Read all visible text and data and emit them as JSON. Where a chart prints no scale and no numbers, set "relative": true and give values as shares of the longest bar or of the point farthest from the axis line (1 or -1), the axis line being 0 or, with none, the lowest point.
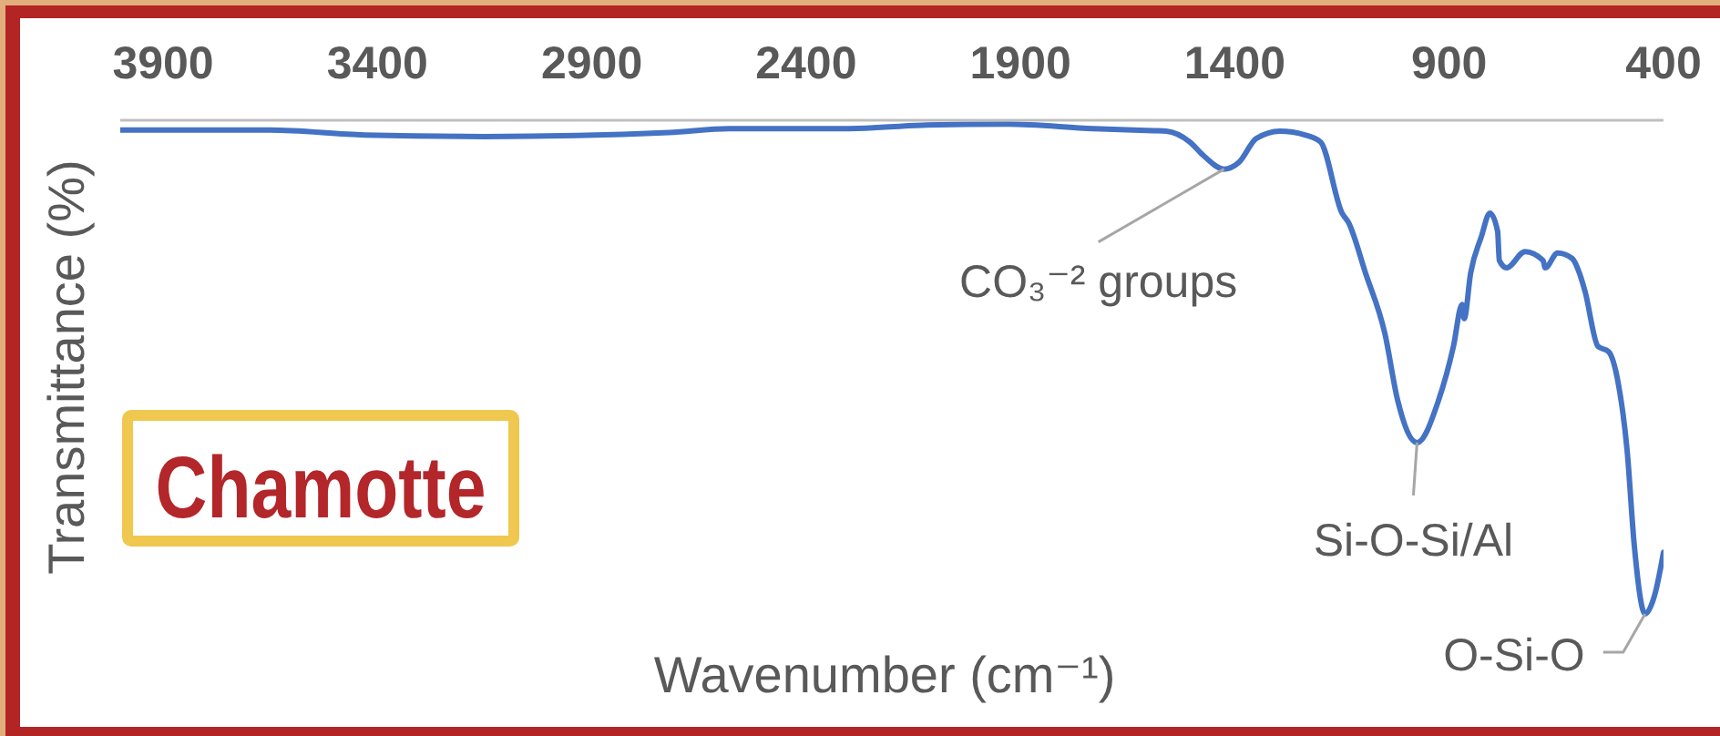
{
  "chart_data": {
    "type": "line",
    "xlabel": "Wavenumber (cm⁻¹)",
    "ylabel": "Transmittance (%)",
    "x": [
      4000,
      3650,
      3430,
      3150,
      2720,
      2580,
      2300,
      2130,
      1930,
      1730,
      1590,
      1560,
      1505,
      1475,
      1425,
      1390,
      1350,
      1295,
      1235,
      1200,
      1150,
      1135,
      1095,
      1050,
      1020,
      975,
      925,
      890,
      870,
      865,
      850,
      825,
      805,
      787,
      783,
      766,
      723,
      681,
      676,
      647,
      613,
      596,
      583,
      553,
      528,
      506,
      485,
      468,
      443,
      421,
      400
    ],
    "series": [
      {
        "color": "#4472c4",
        "values": [
          -0.02,
          -0.02,
          -0.03,
          -0.033,
          -0.025,
          -0.017,
          -0.017,
          -0.01,
          -0.008,
          -0.017,
          -0.021,
          -0.022,
          -0.044,
          -0.07,
          -0.099,
          -0.085,
          -0.037,
          -0.022,
          -0.03,
          -0.044,
          -0.188,
          -0.207,
          -0.31,
          -0.432,
          -0.568,
          -0.653,
          -0.568,
          -0.458,
          -0.373,
          -0.402,
          -0.31,
          -0.236,
          -0.188,
          -0.225,
          -0.284,
          -0.299,
          -0.266,
          -0.284,
          -0.299,
          -0.269,
          -0.28,
          -0.31,
          -0.347,
          -0.458,
          -0.469,
          -0.531,
          -0.668,
          -0.863,
          -1,
          -0.963,
          -0.875
        ]
      }
    ],
    "relative": true,
    "xlim": [
      4000,
      400
    ],
    "xticks": [
      3900,
      3400,
      2900,
      2400,
      1900,
      1400,
      900,
      400
    ],
    "annotations": [
      {
        "text": "CO₃⁻² groups",
        "x": 1425,
        "y": -0.099
      },
      {
        "text": "Si-O-Si/Al",
        "x": 975,
        "y": -0.653
      },
      {
        "text": "O-Si-O",
        "x": 443,
        "y": -1
      },
      "Chamotte"
    ]
  }
}
